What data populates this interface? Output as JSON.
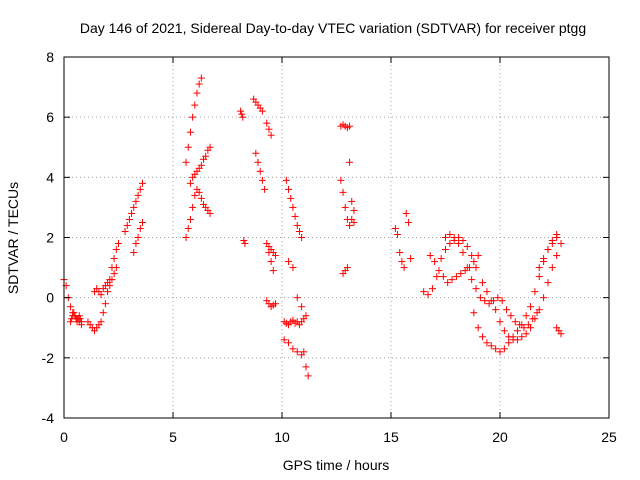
{
  "chart_data": {
    "type": "scatter",
    "title": "Day 146 of 2021, Sidereal Day-to-day VTEC variation (SDTVAR) for receiver ptgg",
    "xlabel": "GPS time / hours",
    "ylabel": "SDTVAR / TECUs",
    "xlim": [
      0,
      25
    ],
    "ylim": [
      -4,
      8
    ],
    "xticks": [
      "0",
      "5",
      "10",
      "15",
      "20",
      "25"
    ],
    "yticks": [
      "-4",
      "-2",
      "0",
      "2",
      "4",
      "6",
      "8"
    ],
    "grid": true,
    "legend": "none",
    "marker": "+",
    "marker_color": "#ff0000",
    "series": [
      {
        "name": "SDTVAR",
        "x": [
          0.0,
          0.1,
          0.2,
          0.3,
          0.4,
          0.5,
          0.6,
          0.7,
          0.8,
          0.3,
          0.35,
          0.4,
          0.45,
          0.5,
          0.55,
          0.6,
          0.65,
          0.7,
          0.75,
          0.8,
          1.1,
          1.2,
          1.3,
          1.4,
          1.5,
          1.6,
          1.7,
          1.8,
          1.9,
          2.0,
          2.1,
          2.2,
          2.3,
          2.4,
          2.5,
          1.4,
          1.5,
          1.6,
          1.7,
          1.8,
          1.9,
          2.0,
          2.1,
          2.2,
          2.3,
          2.4,
          2.8,
          2.9,
          3.0,
          3.1,
          3.2,
          3.3,
          3.4,
          3.5,
          3.6,
          3.2,
          3.3,
          3.4,
          3.5,
          3.6,
          5.6,
          5.7,
          5.8,
          5.9,
          6.0,
          6.1,
          6.2,
          6.3,
          5.6,
          5.7,
          5.8,
          5.9,
          6.0,
          6.1,
          6.2,
          6.3,
          6.4,
          6.5,
          6.6,
          6.7,
          5.8,
          5.9,
          6.0,
          6.1,
          6.2,
          6.3,
          6.4,
          6.5,
          6.6,
          6.7,
          8.1,
          8.15,
          8.2,
          8.25,
          8.3,
          8.7,
          8.8,
          8.9,
          9.0,
          9.1,
          8.8,
          8.9,
          9.0,
          9.1,
          9.2,
          9.3,
          9.4,
          9.5,
          9.3,
          9.4,
          9.5,
          9.6,
          9.3,
          9.4,
          9.5,
          9.6,
          9.7,
          9.4,
          9.5,
          9.6,
          9.7,
          10.2,
          10.3,
          10.4,
          10.5,
          10.6,
          10.7,
          10.8,
          10.9,
          11.0,
          11.1,
          11.2,
          10.3,
          10.5,
          10.7,
          10.9,
          11.1,
          10.1,
          10.2,
          10.3,
          10.4,
          10.5,
          10.6,
          10.7,
          10.8,
          10.9,
          11.0,
          10.1,
          10.3,
          10.5,
          10.7,
          10.9,
          12.7,
          12.8,
          12.9,
          13.0,
          13.1,
          12.7,
          12.8,
          12.9,
          13.0,
          13.1,
          13.2,
          13.3,
          12.8,
          12.9,
          13.0,
          13.1,
          13.2,
          13.3,
          15.2,
          15.3,
          15.4,
          15.5,
          15.6,
          15.7,
          15.8,
          15.9,
          16.5,
          16.7,
          16.9,
          17.1,
          17.3,
          17.5,
          17.7,
          17.9,
          18.1,
          18.3,
          18.5,
          18.7,
          18.9,
          16.8,
          17.0,
          17.2,
          17.4,
          17.6,
          17.8,
          18.0,
          18.2,
          18.4,
          18.6,
          18.8,
          19.0,
          17.5,
          17.7,
          17.9,
          18.1,
          18.3,
          18.5,
          18.7,
          18.9,
          19.1,
          19.3,
          19.5,
          19.7,
          19.9,
          20.1,
          20.3,
          20.5,
          20.7,
          20.9,
          21.1,
          21.3,
          21.5,
          21.7,
          18.8,
          19.0,
          19.2,
          19.4,
          19.6,
          19.8,
          20.0,
          20.2,
          20.4,
          20.6,
          20.8,
          21.0,
          21.2,
          21.4,
          21.6,
          21.8,
          22.0,
          22.2,
          22.4,
          22.6,
          19.2,
          19.4,
          19.6,
          19.8,
          20.0,
          20.2,
          20.4,
          20.6,
          20.8,
          21.0,
          21.2,
          21.4,
          21.6,
          21.8,
          22.0,
          22.2,
          22.4,
          22.6,
          21.8,
          22.0,
          22.2,
          22.4,
          22.6,
          22.8,
          22.6,
          22.7,
          22.8
        ],
        "y": [
          0.6,
          0.4,
          0.0,
          -0.3,
          -0.5,
          -0.6,
          -0.7,
          -0.8,
          -0.9,
          -0.8,
          -0.7,
          -0.6,
          -0.5,
          -0.6,
          -0.7,
          -0.8,
          -0.7,
          -0.6,
          -0.7,
          -0.8,
          -0.8,
          -0.9,
          -1.0,
          -1.1,
          -1.0,
          -0.9,
          -0.8,
          -0.5,
          -0.2,
          0.2,
          0.6,
          1.0,
          1.3,
          1.6,
          1.8,
          0.2,
          0.3,
          0.2,
          0.1,
          0.3,
          0.4,
          0.5,
          0.4,
          0.6,
          0.8,
          1.0,
          2.2,
          2.4,
          2.6,
          2.8,
          3.0,
          3.2,
          3.4,
          3.6,
          3.8,
          1.5,
          1.8,
          2.0,
          2.3,
          2.5,
          4.5,
          5.0,
          5.5,
          6.0,
          6.4,
          6.8,
          7.1,
          7.3,
          2.0,
          2.3,
          2.6,
          3.0,
          3.4,
          3.6,
          3.5,
          3.3,
          3.1,
          3.0,
          2.9,
          2.8,
          3.8,
          4.0,
          4.1,
          4.2,
          4.3,
          4.4,
          4.6,
          4.7,
          4.9,
          5.0,
          6.2,
          6.1,
          6.0,
          1.9,
          1.8,
          6.6,
          6.5,
          6.4,
          6.3,
          6.2,
          4.8,
          4.5,
          4.2,
          3.9,
          3.6,
          5.8,
          5.6,
          5.4,
          1.8,
          1.5,
          1.2,
          0.9,
          -0.1,
          -0.2,
          -0.3,
          -0.25,
          -0.2,
          1.7,
          1.6,
          1.5,
          1.4,
          3.9,
          3.6,
          3.3,
          3.0,
          2.7,
          2.4,
          2.2,
          2.0,
          -1.8,
          -2.3,
          -2.6,
          1.2,
          1.0,
          0.0,
          -0.3,
          -0.6,
          -0.8,
          -0.85,
          -0.9,
          -0.8,
          -0.75,
          -0.85,
          -0.8,
          -0.9,
          -0.8,
          -0.7,
          -1.4,
          -1.5,
          -1.7,
          -1.8,
          -1.9,
          5.7,
          5.75,
          5.7,
          5.65,
          5.7,
          3.9,
          3.5,
          3.0,
          2.6,
          2.4,
          2.6,
          2.5,
          0.8,
          0.9,
          1.0,
          4.5,
          3.2,
          2.9,
          2.3,
          2.1,
          1.5,
          1.2,
          1.0,
          2.8,
          2.5,
          1.3,
          0.2,
          0.1,
          0.3,
          0.7,
          1.3,
          1.6,
          1.8,
          1.9,
          2.0,
          1.9,
          1.7,
          1.4,
          1.0,
          1.4,
          1.2,
          0.9,
          0.7,
          0.5,
          0.6,
          0.7,
          0.8,
          0.9,
          1.0,
          1.2,
          1.4,
          2.0,
          2.1,
          2.0,
          1.8,
          1.5,
          1.0,
          0.6,
          0.3,
          0.0,
          -0.1,
          -0.2,
          -0.1,
          0.0,
          -0.1,
          -0.4,
          -0.6,
          -0.8,
          -0.9,
          -1.0,
          -0.9,
          -0.7,
          -0.5,
          -0.5,
          -1.0,
          -1.3,
          -1.5,
          -1.6,
          -1.7,
          -1.8,
          -1.7,
          -1.5,
          -1.3,
          -1.1,
          -0.9,
          -0.6,
          -0.3,
          0.2,
          0.7,
          1.2,
          1.6,
          1.9,
          2.1,
          0.5,
          0.2,
          -0.1,
          -0.4,
          -0.8,
          -1.1,
          -1.3,
          -1.4,
          -1.4,
          -1.3,
          -1.2,
          -1.0,
          -0.7,
          -0.4,
          0.0,
          0.5,
          1.0,
          1.4,
          1.0,
          1.3,
          1.6,
          1.8,
          2.0,
          1.8,
          -1.0,
          -1.1,
          -1.2
        ]
      }
    ]
  }
}
